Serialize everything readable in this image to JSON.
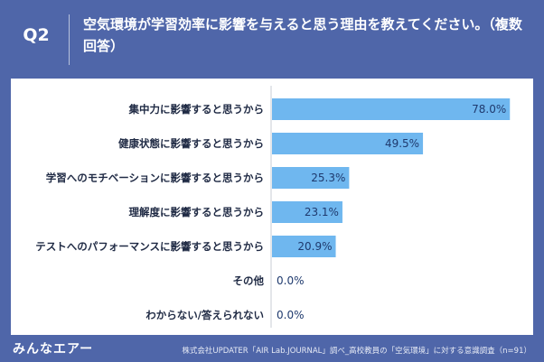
{
  "header": {
    "question_no": "Q2",
    "question": "空気環境が学習効率に影響を与えると思う理由を教えてください。（複数回答）"
  },
  "chart_data": {
    "type": "bar",
    "orientation": "horizontal",
    "categories": [
      "集中力に影響すると思うから",
      "健康状態に影響すると思うから",
      "学習へのモチベーションに影響すると思うから",
      "理解度に影響すると思うから",
      "テストへのパフォーマンスに影響すると思うから",
      "その他",
      "わからない/答えられない"
    ],
    "values": [
      78.0,
      49.5,
      25.3,
      23.1,
      20.9,
      0.0,
      0.0
    ],
    "value_labels": [
      "78.0%",
      "49.5%",
      "25.3%",
      "23.1%",
      "20.9%",
      "0.0%",
      "0.0%"
    ],
    "unit": "%",
    "xlim": [
      0,
      80
    ],
    "bar_color": "#6fb7ef",
    "grid": true
  },
  "footer": {
    "logo": "みんなエアー",
    "source": "株式会社UPDATER「AIR Lab.JOURNAL」調べ_高校教員の「空気環境」に対する意識調査（n=91）"
  }
}
